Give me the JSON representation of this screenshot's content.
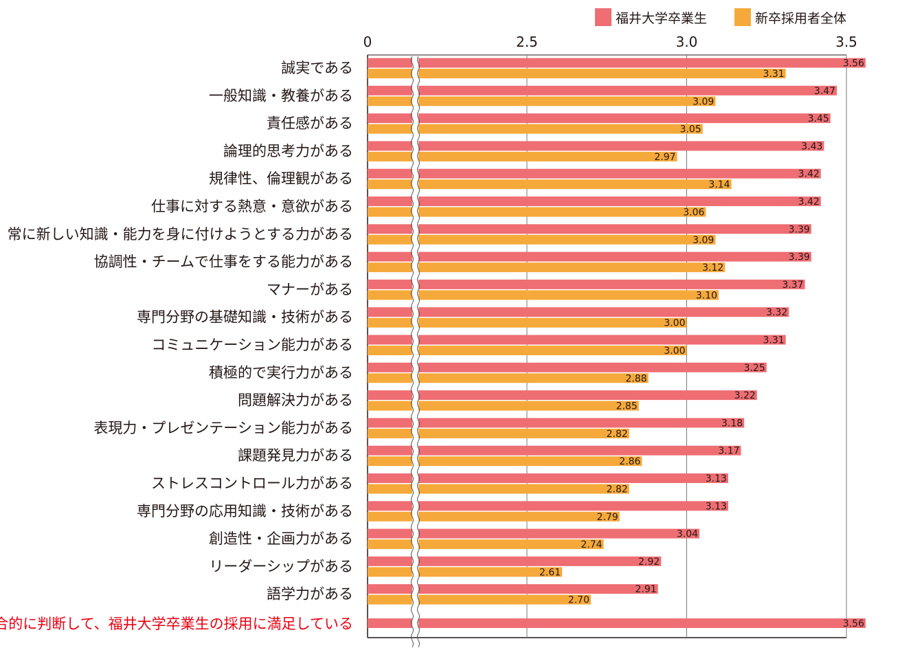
{
  "chart_data": {
    "type": "bar",
    "orientation": "horizontal",
    "axis_break": "between 0 and 2.5",
    "xlim": [
      0,
      3.5
    ],
    "x_ticks": [
      "0",
      "2.5",
      "3.0",
      "3.5"
    ],
    "grid": true,
    "legend_position": "top-right",
    "colors": {
      "series1": "#ee6e73",
      "series2": "#f5a93b",
      "highlight_text": "#e60012"
    },
    "series": [
      {
        "name": "福井大学卒業生"
      },
      {
        "name": "新卒採用者全体"
      }
    ],
    "categories": [
      "誠実である",
      "一般知識・教養がある",
      "責任感がある",
      "論理的思考力がある",
      "規律性、倫理観がある",
      "仕事に対する熱意・意欲がある",
      "常に新しい知識・能力を身に付けようとする力がある",
      "協調性・チームで仕事をする能力がある",
      "マナーがある",
      "専門分野の基礎知識・技術がある",
      "コミュニケーション能力がある",
      "積極的で実行力がある",
      "問題解決力がある",
      "表現力・プレゼンテーション能力がある",
      "課題発見力がある",
      "ストレスコントロール力がある",
      "専門分野の応用知識・技術がある",
      "創造性・企画力がある",
      "リーダーシップがある",
      "語学力がある",
      "総合的に判断して、福井大学卒業生の採用に満足している"
    ],
    "values1": [
      3.56,
      3.47,
      3.45,
      3.43,
      3.42,
      3.42,
      3.39,
      3.39,
      3.37,
      3.32,
      3.31,
      3.25,
      3.22,
      3.18,
      3.17,
      3.13,
      3.13,
      3.04,
      2.92,
      2.91,
      3.56
    ],
    "values2": [
      3.31,
      3.09,
      3.05,
      2.97,
      3.14,
      3.06,
      3.09,
      3.12,
      3.1,
      3.0,
      3.0,
      2.88,
      2.85,
      2.82,
      2.86,
      2.82,
      2.79,
      2.74,
      2.61,
      2.7,
      null
    ],
    "value_labels1": [
      "3.56",
      "3.47",
      "3.45",
      "3.43",
      "3.42",
      "3.42",
      "3.39",
      "3.39",
      "3.37",
      "3.32",
      "3.31",
      "3.25",
      "3.22",
      "3.18",
      "3.17",
      "3.13",
      "3.13",
      "3.04",
      "2.92",
      "2.91",
      "3.56"
    ],
    "value_labels2": [
      "3.31",
      "3.09",
      "3.05",
      "2.97",
      "3.14",
      "3.06",
      "3.09",
      "3.12",
      "3.10",
      "3.00",
      "3.00",
      "2.88",
      "2.85",
      "2.82",
      "2.86",
      "2.82",
      "2.79",
      "2.74",
      "2.61",
      "2.70",
      ""
    ],
    "highlight_category_index": 20
  }
}
